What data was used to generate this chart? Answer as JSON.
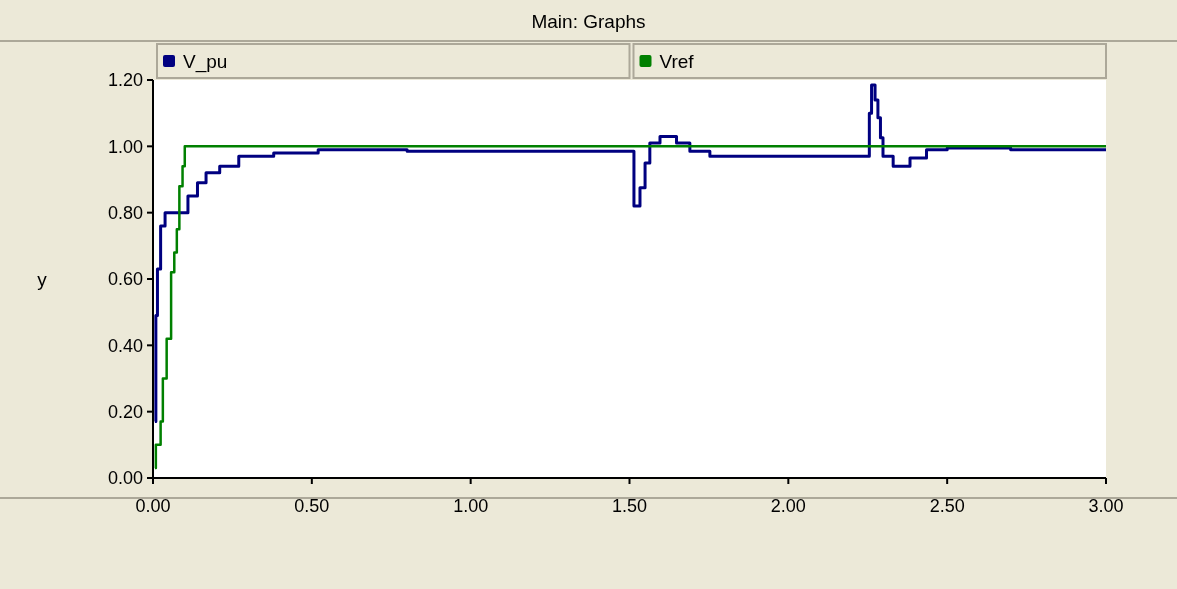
{
  "chart_data": {
    "type": "step",
    "title": "Main: Graphs",
    "ylabel": "y",
    "legend": "top",
    "xlim": [
      0,
      3
    ],
    "ylim": [
      0,
      1.2
    ],
    "xticks": [
      {
        "value": 0,
        "label": "0.00"
      },
      {
        "value": 0.5,
        "label": "0.50"
      },
      {
        "value": 1,
        "label": "1.00"
      },
      {
        "value": 1.5,
        "label": "1.50"
      },
      {
        "value": 2,
        "label": "2.00"
      },
      {
        "value": 2.5,
        "label": "2.50"
      },
      {
        "value": 3,
        "label": "3.00"
      }
    ],
    "yticks": [
      {
        "value": 0,
        "label": "0.00"
      },
      {
        "value": 0.2,
        "label": "0.20"
      },
      {
        "value": 0.4,
        "label": "0.40"
      },
      {
        "value": 0.6,
        "label": "0.60"
      },
      {
        "value": 0.8,
        "label": "0.80"
      },
      {
        "value": 1,
        "label": "1.00"
      },
      {
        "value": 1.2,
        "label": "1.20"
      }
    ],
    "series": [
      {
        "name": "V_pu",
        "color": "#000080",
        "x": [
          0.006,
          0.009,
          0.014,
          0.024,
          0.038,
          0.064,
          0.11,
          0.14,
          0.167,
          0.21,
          0.27,
          0.38,
          0.52,
          0.8,
          1.2,
          1.501,
          1.514,
          1.533,
          1.549,
          1.564,
          1.596,
          1.648,
          1.69,
          1.753,
          2.0,
          2.25,
          2.255,
          2.262,
          2.273,
          2.282,
          2.29,
          2.298,
          2.33,
          2.383,
          2.435,
          2.5,
          2.7,
          3.0
        ],
        "values": [
          0.17,
          0.49,
          0.63,
          0.76,
          0.8,
          0.8,
          0.85,
          0.89,
          0.92,
          0.94,
          0.97,
          0.98,
          0.99,
          0.985,
          0.985,
          0.985,
          0.82,
          0.875,
          0.95,
          1.01,
          1.03,
          1.01,
          0.985,
          0.97,
          0.97,
          0.97,
          1.1,
          1.185,
          1.14,
          1.086,
          1.026,
          0.97,
          0.94,
          0.965,
          0.99,
          0.995,
          0.99,
          0.99
        ]
      },
      {
        "name": "Vref",
        "color": "#008000",
        "x": [
          0.006,
          0.009,
          0.024,
          0.031,
          0.043,
          0.057,
          0.067,
          0.075,
          0.083,
          0.093,
          0.1,
          3.0
        ],
        "values": [
          0.03,
          0.1,
          0.17,
          0.3,
          0.42,
          0.62,
          0.68,
          0.75,
          0.88,
          0.94,
          1.0,
          1.0
        ]
      }
    ]
  }
}
